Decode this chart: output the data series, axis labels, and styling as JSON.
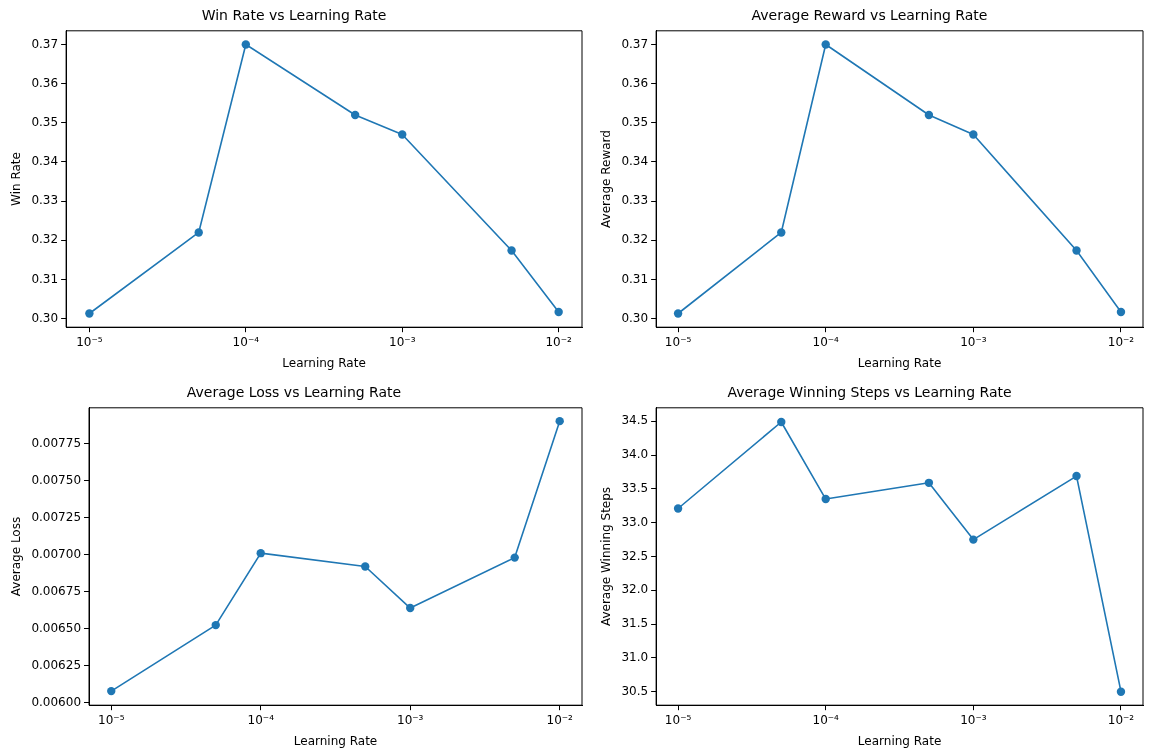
{
  "chart_data": [
    {
      "type": "line",
      "title": "Win Rate vs Learning Rate",
      "xlabel": "Learning Rate",
      "ylabel": "Win Rate",
      "log": "x",
      "grid": false,
      "legend": false,
      "marker": "circle",
      "line_style": "solid",
      "x": [
        1e-05,
        5e-05,
        0.0001,
        0.0005,
        0.001,
        0.005,
        0.01
      ],
      "series": [
        {
          "color": "#1f77b4",
          "values": [
            0.3013,
            0.322,
            0.37,
            0.352,
            0.347,
            0.3174,
            0.3017
          ]
        }
      ],
      "xlim": [
        7.1e-06,
        0.0141
      ],
      "xticks": [
        {
          "value": 1e-05,
          "label": "10⁻⁵"
        },
        {
          "value": 0.0001,
          "label": "10⁻⁴"
        },
        {
          "value": 0.001,
          "label": "10⁻³"
        },
        {
          "value": 0.01,
          "label": "10⁻²"
        }
      ],
      "ylim": [
        0.2978,
        0.3735
      ],
      "yticks": [
        {
          "value": 0.3,
          "label": "0.30"
        },
        0.31,
        0.32,
        0.33,
        0.34,
        0.35,
        0.36,
        0.37
      ]
    },
    {
      "type": "line",
      "title": "Average Reward vs Learning Rate",
      "xlabel": "Learning Rate",
      "ylabel": "Average Reward",
      "log": "x",
      "grid": false,
      "legend": false,
      "marker": "circle",
      "line_style": "solid",
      "x": [
        1e-05,
        5e-05,
        0.0001,
        0.0005,
        0.001,
        0.005,
        0.01
      ],
      "series": [
        {
          "color": "#1f77b4",
          "values": [
            0.3013,
            0.322,
            0.37,
            0.352,
            0.347,
            0.3174,
            0.3017
          ]
        }
      ],
      "xlim": [
        7.1e-06,
        0.0141
      ],
      "xticks": [
        {
          "value": 1e-05,
          "label": "10⁻⁵"
        },
        {
          "value": 0.0001,
          "label": "10⁻⁴"
        },
        {
          "value": 0.001,
          "label": "10⁻³"
        },
        {
          "value": 0.01,
          "label": "10⁻²"
        }
      ],
      "ylim": [
        0.2978,
        0.3735
      ],
      "yticks": [
        {
          "value": 0.3,
          "label": "0.30"
        },
        0.31,
        0.32,
        0.33,
        0.34,
        0.35,
        0.36,
        0.37
      ]
    },
    {
      "type": "line",
      "title": "Average Loss vs Learning Rate",
      "xlabel": "Learning Rate",
      "ylabel": "Average Loss",
      "log": "x",
      "grid": false,
      "legend": false,
      "marker": "circle",
      "line_style": "solid",
      "x": [
        1e-05,
        5e-05,
        0.0001,
        0.0005,
        0.001,
        0.005,
        0.01
      ],
      "series": [
        {
          "color": "#1f77b4",
          "values": [
            0.00608,
            0.006525,
            0.00701,
            0.00692,
            0.00664,
            0.00698,
            0.0079
          ]
        }
      ],
      "xlim": [
        7.1e-06,
        0.0141
      ],
      "xticks": [
        {
          "value": 1e-05,
          "label": "10⁻⁵"
        },
        {
          "value": 0.0001,
          "label": "10⁻⁴"
        },
        {
          "value": 0.001,
          "label": "10⁻³"
        },
        {
          "value": 0.01,
          "label": "10⁻²"
        }
      ],
      "ylim": [
        0.005985,
        0.00799
      ],
      "yticks": [
        {
          "value": 0.006,
          "label": "0.00600"
        },
        {
          "value": 0.00625,
          "label": "0.00625"
        },
        {
          "value": 0.0065,
          "label": "0.00650"
        },
        {
          "value": 0.00675,
          "label": "0.00675"
        },
        {
          "value": 0.007,
          "label": "0.00700"
        },
        {
          "value": 0.00725,
          "label": "0.00725"
        },
        {
          "value": 0.0075,
          "label": "0.00750"
        },
        {
          "value": 0.00775,
          "label": "0.00775"
        }
      ]
    },
    {
      "type": "line",
      "title": "Average Winning Steps vs Learning Rate",
      "xlabel": "Learning Rate",
      "ylabel": "Average Winning Steps",
      "log": "x",
      "grid": false,
      "legend": false,
      "marker": "circle",
      "line_style": "solid",
      "x": [
        1e-05,
        5e-05,
        0.0001,
        0.0005,
        0.001,
        0.005,
        0.01
      ],
      "series": [
        {
          "color": "#1f77b4",
          "values": [
            33.21,
            34.49,
            33.35,
            33.59,
            32.75,
            33.69,
            30.5
          ]
        }
      ],
      "xlim": [
        7.1e-06,
        0.0141
      ],
      "xticks": [
        {
          "value": 1e-05,
          "label": "10⁻⁵"
        },
        {
          "value": 0.0001,
          "label": "10⁻⁴"
        },
        {
          "value": 0.001,
          "label": "10⁻³"
        },
        {
          "value": 0.01,
          "label": "10⁻²"
        }
      ],
      "ylim": [
        30.3,
        34.7
      ],
      "yticks": [
        30.5,
        {
          "value": 31,
          "label": "31.0"
        },
        31.5,
        {
          "value": 32,
          "label": "32.0"
        },
        32.5,
        {
          "value": 33,
          "label": "33.0"
        },
        33.5,
        {
          "value": 34,
          "label": "34.0"
        },
        34.5
      ]
    }
  ]
}
